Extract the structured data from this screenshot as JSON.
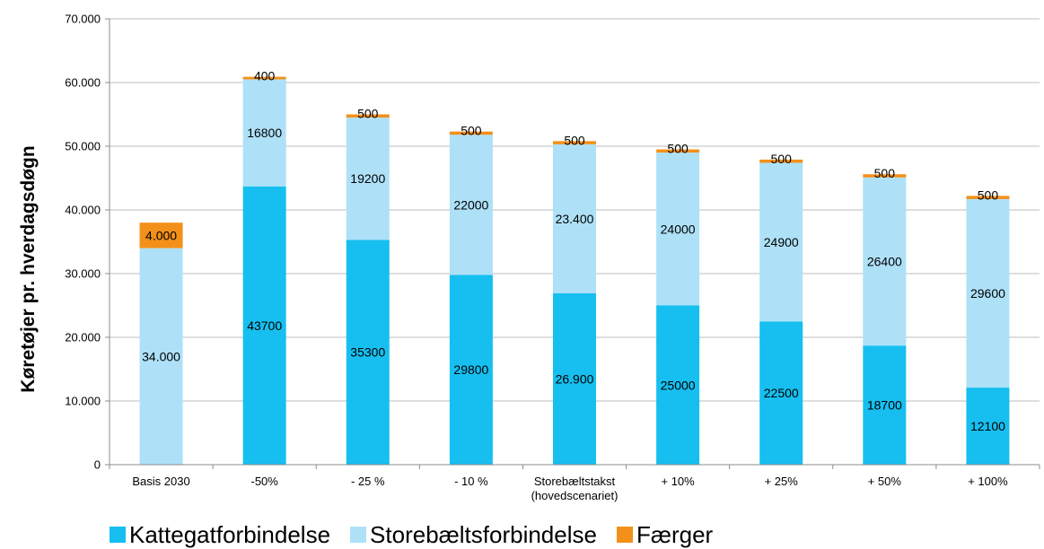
{
  "chart_data": {
    "type": "bar",
    "stacked": true,
    "ylabel": "Køretøjer pr. hverdagsdøgn",
    "ylim": [
      0,
      70000
    ],
    "yticks": [
      {
        "value": 0,
        "label": "0"
      },
      {
        "value": 10000,
        "label": "10.000"
      },
      {
        "value": 20000,
        "label": "20.000"
      },
      {
        "value": 30000,
        "label": "30.000"
      },
      {
        "value": 40000,
        "label": "40.000"
      },
      {
        "value": 50000,
        "label": "50.000"
      },
      {
        "value": 60000,
        "label": "60.000"
      },
      {
        "value": 70000,
        "label": "70.000"
      }
    ],
    "categories": [
      [
        "Basis 2030"
      ],
      [
        "-50%"
      ],
      [
        "- 25 %"
      ],
      [
        "- 10 %"
      ],
      [
        "Storebæltstakst",
        "(hovedscenariet)"
      ],
      [
        "+ 10%"
      ],
      [
        "+ 25%"
      ],
      [
        "+ 50%"
      ],
      [
        "+ 100%"
      ]
    ],
    "series": [
      {
        "name": "Kattegatforbindelse",
        "color": "#16bff0",
        "values": [
          0,
          43700,
          35300,
          29800,
          26900,
          25000,
          22500,
          18700,
          12100
        ],
        "labels": [
          "",
          "43700",
          "35300",
          "29800",
          "26.900",
          "25000",
          "22500",
          "18700",
          "12100"
        ]
      },
      {
        "name": "Storebæltsforbindelse",
        "color": "#aee1f8",
        "values": [
          34000,
          16800,
          19200,
          22000,
          23400,
          24000,
          24900,
          26400,
          29600
        ],
        "labels": [
          "34.000",
          "16800",
          "19200",
          "22000",
          "23.400",
          "24000",
          "24900",
          "26400",
          "29600"
        ]
      },
      {
        "name": "Færger",
        "color": "#f39019",
        "values": [
          4000,
          400,
          500,
          500,
          500,
          500,
          500,
          500,
          500
        ],
        "labels": [
          "4.000",
          "400",
          "500",
          "500",
          "500",
          "500",
          "500",
          "500",
          "500"
        ]
      }
    ],
    "legend": "bottom-left",
    "grid": true
  }
}
